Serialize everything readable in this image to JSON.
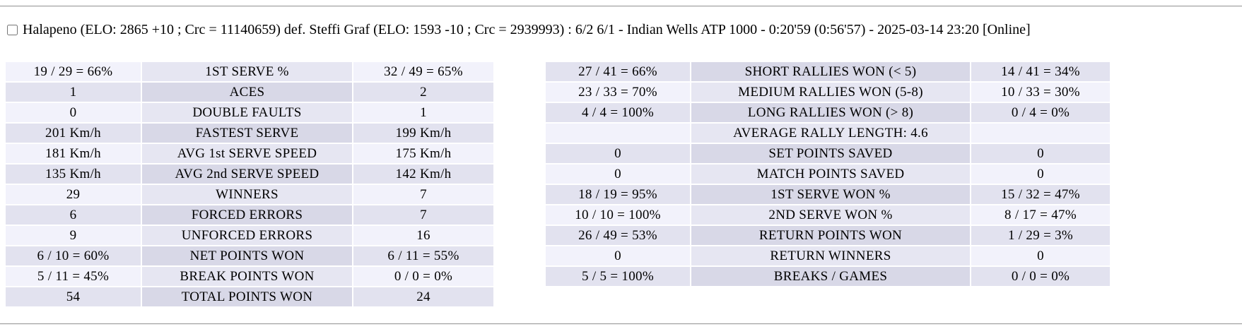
{
  "header": {
    "match_summary": "Halapeno (ELO: 2865 +10 ; Crc = 11140659) def. Steffi Graf (ELO: 1593 -10 ; Crc = 2939993) : 6/2 6/1 - Indian Wells ATP 1000 - 0:20'59 (0:56'57) - 2025-03-14 23:20 [Online]",
    "checkbox_checked": false
  },
  "colors": {
    "row_light_side": "#f2f2fb",
    "row_light_center": "#e6e6f2",
    "row_dark_side": "#e2e2ef",
    "row_dark_center": "#d8d8e7",
    "divider": "#9e9e9e"
  },
  "serve_stats": {
    "rows": [
      {
        "p1": "19 / 29 = 66%",
        "label": "1ST SERVE %",
        "p2": "32 / 49 = 65%"
      },
      {
        "p1": "1",
        "label": "ACES",
        "p2": "2"
      },
      {
        "p1": "0",
        "label": "DOUBLE FAULTS",
        "p2": "1"
      },
      {
        "p1": "201 Km/h",
        "label": "FASTEST SERVE",
        "p2": "199 Km/h"
      },
      {
        "p1": "181 Km/h",
        "label": "AVG 1st SERVE SPEED",
        "p2": "175 Km/h"
      },
      {
        "p1": "135 Km/h",
        "label": "AVG 2nd SERVE SPEED",
        "p2": "142 Km/h"
      },
      {
        "p1": "29",
        "label": "WINNERS",
        "p2": "7"
      },
      {
        "p1": "6",
        "label": "FORCED ERRORS",
        "p2": "7"
      },
      {
        "p1": "9",
        "label": "UNFORCED ERRORS",
        "p2": "16"
      },
      {
        "p1": "6 / 10 = 60%",
        "label": "NET POINTS WON",
        "p2": "6 / 11 = 55%"
      },
      {
        "p1": "5 / 11 = 45%",
        "label": "BREAK POINTS WON",
        "p2": "0 / 0 = 0%"
      },
      {
        "p1": "54",
        "label": "TOTAL POINTS WON",
        "p2": "24"
      }
    ]
  },
  "rally_stats": {
    "rows": [
      {
        "p1": "27 / 41 = 66%",
        "label": "SHORT RALLIES WON (< 5)",
        "p2": "14 / 41 = 34%"
      },
      {
        "p1": "23 / 33 = 70%",
        "label": "MEDIUM RALLIES WON (5-8)",
        "p2": "10 / 33 = 30%"
      },
      {
        "p1": "4 / 4 = 100%",
        "label": "LONG RALLIES WON (> 8)",
        "p2": "0 / 4 = 0%"
      },
      {
        "p1": "",
        "label": "AVERAGE RALLY LENGTH: 4.6",
        "p2": ""
      },
      {
        "p1": "0",
        "label": "SET POINTS SAVED",
        "p2": "0"
      },
      {
        "p1": "0",
        "label": "MATCH POINTS SAVED",
        "p2": "0"
      },
      {
        "p1": "18 / 19 = 95%",
        "label": "1ST SERVE WON %",
        "p2": "15 / 32 = 47%"
      },
      {
        "p1": "10 / 10 = 100%",
        "label": "2ND SERVE WON %",
        "p2": "8 / 17 = 47%"
      },
      {
        "p1": "26 / 49 = 53%",
        "label": "RETURN POINTS WON",
        "p2": "1 / 29 = 3%"
      },
      {
        "p1": "0",
        "label": "RETURN WINNERS",
        "p2": "0"
      },
      {
        "p1": "5 / 5 = 100%",
        "label": "BREAKS / GAMES",
        "p2": "0 / 0 = 0%"
      }
    ]
  }
}
